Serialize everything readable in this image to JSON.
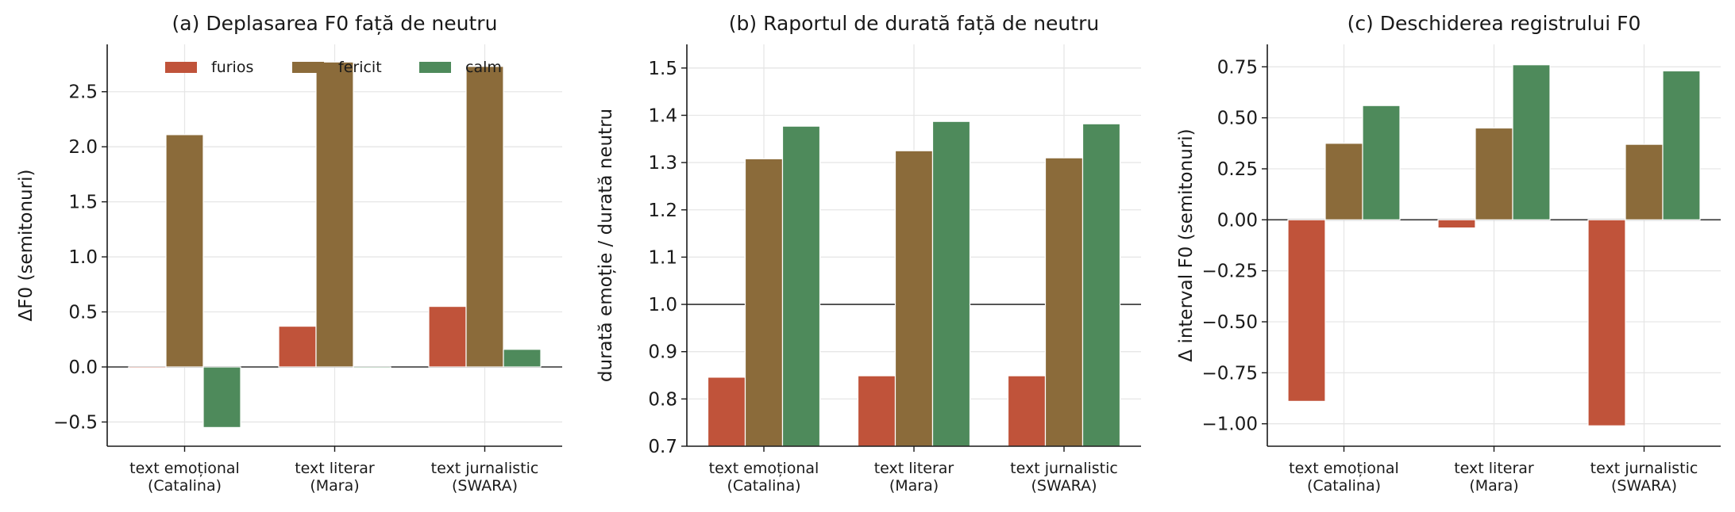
{
  "colors": {
    "furios": "#c0533a",
    "fericit": "#8b6b3a",
    "calm": "#4e8a5b"
  },
  "legend": [
    {
      "label": "furios",
      "color": "#c0533a"
    },
    {
      "label": "fericit",
      "color": "#8b6b3a"
    },
    {
      "label": "calm",
      "color": "#4e8a5b"
    }
  ],
  "chart_data": [
    {
      "type": "bar",
      "title": "(a) Deplasarea F0 față de neutru",
      "ylabel": "ΔF0 (semitonuri)",
      "categories": [
        [
          "text emoțional",
          "(Catalina)"
        ],
        [
          "text literar",
          "(Mara)"
        ],
        [
          "text jurnalistic",
          "(SWARA)"
        ]
      ],
      "series": [
        {
          "name": "furios",
          "values": [
            -0.01,
            0.37,
            0.55
          ]
        },
        {
          "name": "fericit",
          "values": [
            2.11,
            2.77,
            2.73
          ]
        },
        {
          "name": "calm",
          "values": [
            -0.55,
            0.0,
            0.16
          ]
        }
      ],
      "ylim": [
        -0.72,
        2.93
      ],
      "yticks": [
        -0.5,
        0.0,
        0.5,
        1.0,
        1.5,
        2.0,
        2.5
      ],
      "ytick_labels": [
        "−0.5",
        "0.0",
        "0.5",
        "1.0",
        "1.5",
        "2.0",
        "2.5"
      ],
      "refline": 0.0,
      "grid": true,
      "legend_position": "top"
    },
    {
      "type": "bar",
      "title": "(b) Raportul de durată față de neutru",
      "ylabel": "durată emoție / durată neutru",
      "categories": [
        [
          "text emoțional",
          "(Catalina)"
        ],
        [
          "text literar",
          "(Mara)"
        ],
        [
          "text jurnalistic",
          "(SWARA)"
        ]
      ],
      "series": [
        {
          "name": "furios",
          "values": [
            0.846,
            0.849,
            0.849
          ]
        },
        {
          "name": "fericit",
          "values": [
            1.308,
            1.325,
            1.31
          ]
        },
        {
          "name": "calm",
          "values": [
            1.377,
            1.387,
            1.382
          ]
        }
      ],
      "ylim": [
        0.7,
        1.55
      ],
      "yticks": [
        0.7,
        0.8,
        0.9,
        1.0,
        1.1,
        1.2,
        1.3,
        1.4,
        1.5
      ],
      "ytick_labels": [
        "0.7",
        "0.8",
        "0.9",
        "1.0",
        "1.1",
        "1.2",
        "1.3",
        "1.4",
        "1.5"
      ],
      "refline": 1.0,
      "grid": true
    },
    {
      "type": "bar",
      "title": "(c) Deschiderea registrului F0",
      "ylabel": "Δ interval F0 (semitonuri)",
      "categories": [
        [
          "text emoțional",
          "(Catalina)"
        ],
        [
          "text literar",
          "(Mara)"
        ],
        [
          "text jurnalistic",
          "(SWARA)"
        ]
      ],
      "series": [
        {
          "name": "furios",
          "values": [
            -0.89,
            -0.04,
            -1.01
          ]
        },
        {
          "name": "fericit",
          "values": [
            0.375,
            0.45,
            0.37
          ]
        },
        {
          "name": "calm",
          "values": [
            0.56,
            0.76,
            0.73
          ]
        }
      ],
      "ylim": [
        -1.11,
        0.86
      ],
      "yticks": [
        -1.0,
        -0.75,
        -0.5,
        -0.25,
        0.0,
        0.25,
        0.5,
        0.75
      ],
      "ytick_labels": [
        "−1.00",
        "−0.75",
        "−0.50",
        "−0.25",
        "0.00",
        "0.25",
        "0.50",
        "0.75"
      ],
      "refline": 0.0,
      "grid": true
    }
  ]
}
